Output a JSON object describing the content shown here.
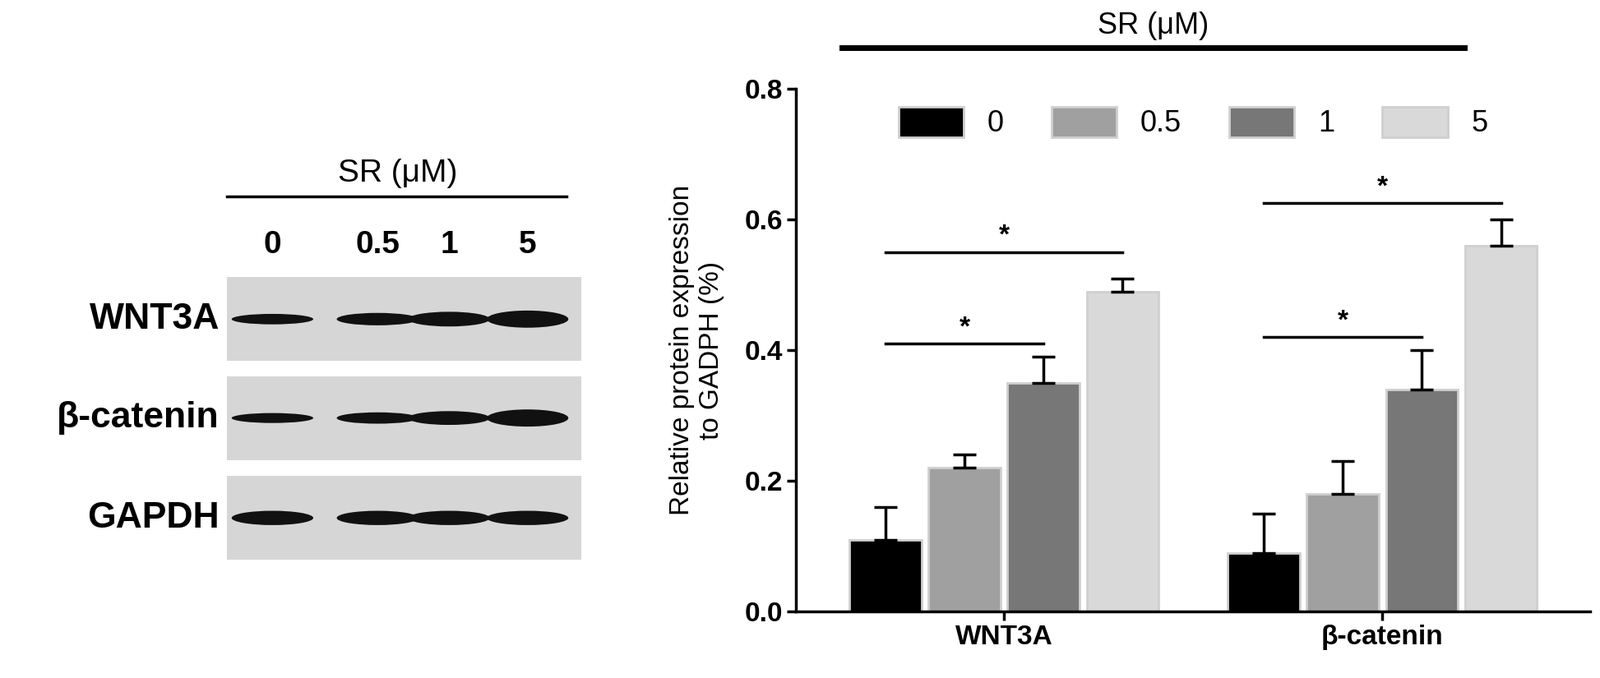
{
  "blot": {
    "header": "SR (μM)",
    "lanes": [
      "0",
      "0.5",
      "1",
      "5"
    ],
    "rows": [
      "WNT3A",
      "β-catenin",
      "GAPDH"
    ]
  },
  "chart_data": {
    "type": "bar",
    "title": "SR (μM)",
    "y_label": "Relative protein expression\nto GADPH (%)",
    "categories": [
      "WNT3A",
      "β-catenin"
    ],
    "series": [
      {
        "name": "0",
        "color": "#000000",
        "values": [
          0.11,
          0.09
        ],
        "errors": [
          0.05,
          0.06
        ]
      },
      {
        "name": "0.5",
        "color": "#a0a0a0",
        "values": [
          0.22,
          0.18
        ],
        "errors": [
          0.02,
          0.05
        ]
      },
      {
        "name": "1",
        "color": "#777777",
        "values": [
          0.35,
          0.34
        ],
        "errors": [
          0.04,
          0.06
        ]
      },
      {
        "name": "5",
        "color": "#d9d9d9",
        "values": [
          0.49,
          0.56
        ],
        "errors": [
          0.02,
          0.04
        ]
      }
    ],
    "ylim": [
      0.0,
      0.8
    ],
    "yticks": [
      0.0,
      0.2,
      0.4,
      0.6,
      0.8
    ],
    "grid": false,
    "legend": "upper center",
    "annotations": [
      {
        "text": "*",
        "category": "WNT3A",
        "from": "0",
        "to": "1",
        "y": 0.41
      },
      {
        "text": "*",
        "category": "WNT3A",
        "from": "0",
        "to": "5",
        "y": 0.55
      },
      {
        "text": "*",
        "category": "β-catenin",
        "from": "0",
        "to": "1",
        "y": 0.42
      },
      {
        "text": "*",
        "category": "β-catenin",
        "from": "0",
        "to": "5",
        "y": 0.625
      }
    ]
  }
}
